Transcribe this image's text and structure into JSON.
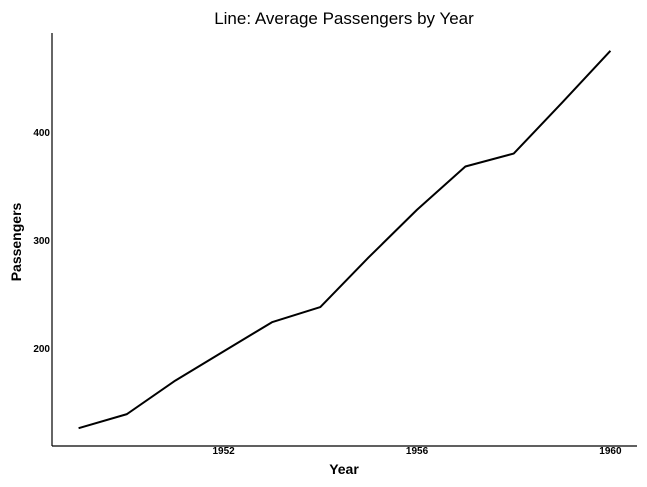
{
  "chart_data": {
    "type": "line",
    "title": "Line: Average Passengers by Year",
    "xlabel": "Year",
    "ylabel": "Passengers",
    "x": [
      1949,
      1950,
      1951,
      1952,
      1953,
      1954,
      1955,
      1956,
      1957,
      1958,
      1959,
      1960
    ],
    "series": [
      {
        "values": [
          127,
          140,
          171,
          198,
          225,
          239,
          285,
          329,
          369,
          381,
          428,
          476
        ]
      }
    ],
    "xticks": [
      1952,
      1956,
      1960
    ],
    "xtick_labels": [
      "1952",
      "1956",
      "1960"
    ],
    "yticks": [
      200,
      300,
      400
    ],
    "ytick_labels": [
      "200",
      "300",
      "400"
    ],
    "xlim": [
      1948.45,
      1960.55
    ],
    "ylim": [
      110.5,
      492.5
    ],
    "grid": false,
    "line_color": "#000000"
  }
}
